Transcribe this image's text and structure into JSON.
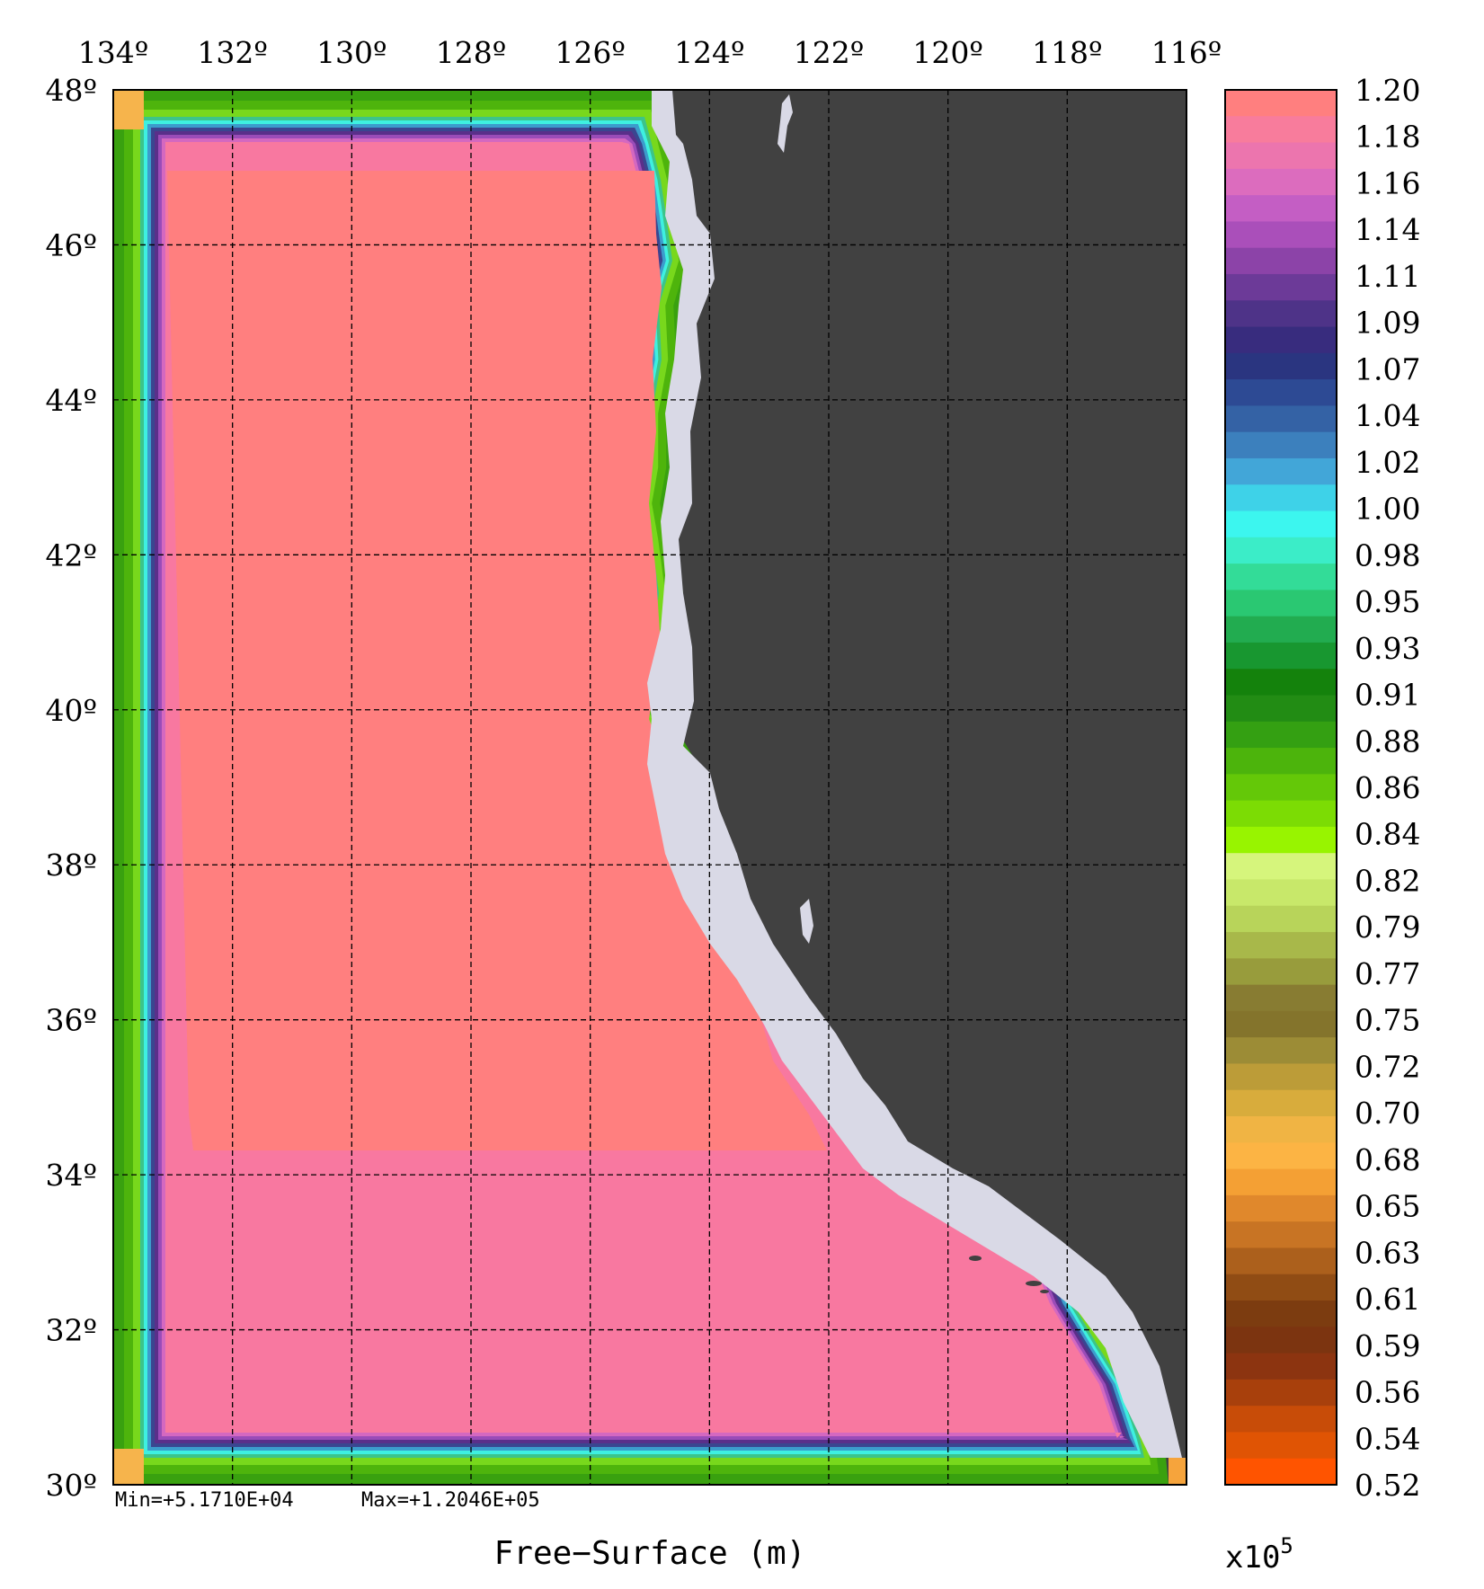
{
  "map": {
    "lon_labels": [
      "134º",
      "132º",
      "130º",
      "128º",
      "126º",
      "124º",
      "122º",
      "120º",
      "118º",
      "116º"
    ],
    "lat_labels": [
      "48º",
      "46º",
      "44º",
      "42º",
      "40º",
      "38º",
      "36º",
      "34º",
      "32º",
      "30º"
    ],
    "lon_range": [
      134,
      116
    ],
    "lat_range": [
      30,
      48
    ],
    "grid": true,
    "land_color": "#414141",
    "min_text": "Min=+5.1710E+04",
    "max_text": "Max=+1.2046E+05",
    "title": "Free−Surface (m)"
  },
  "colorbar": {
    "labels": [
      "1.20",
      "1.18",
      "1.16",
      "1.14",
      "1.11",
      "1.09",
      "1.07",
      "1.04",
      "1.02",
      "1.00",
      "0.98",
      "0.95",
      "0.93",
      "0.91",
      "0.88",
      "0.86",
      "0.84",
      "0.82",
      "0.79",
      "0.77",
      "0.75",
      "0.72",
      "0.70",
      "0.68",
      "0.65",
      "0.63",
      "0.61",
      "0.59",
      "0.56",
      "0.54",
      "0.52"
    ],
    "exponent_base": "x10",
    "exponent_power": "5",
    "colors": [
      "#ff7f7f",
      "#f87c9c",
      "#ec75ae",
      "#dc6cbe",
      "#c45ec4",
      "#aa4fba",
      "#8c43a8",
      "#6c3a98",
      "#4e3388",
      "#382c7e",
      "#2a3580",
      "#2d4a94",
      "#3462a5",
      "#3c80bd",
      "#42a6d8",
      "#3ed2e8",
      "#3cf6ef",
      "#3bedc8",
      "#33dc98",
      "#2ac872",
      "#22ac50",
      "#189730",
      "#14820c",
      "#228c14",
      "#34a012",
      "#4cb40c",
      "#64c808",
      "#7cdc04",
      "#98f400",
      "#d6f57c",
      "#c8e86a",
      "#b8d45a",
      "#a8b84a",
      "#989c3c",
      "#887c32",
      "#84742c",
      "#9c8c36",
      "#bc9c38",
      "#d8ac3c",
      "#f0b444",
      "#fcb444",
      "#f4a034",
      "#e0882c",
      "#c87424",
      "#ac601c",
      "#904c14",
      "#7c3c10",
      "#7c3410",
      "#8c3410",
      "#a8400c",
      "#c84c08",
      "#e05404",
      "#ff5400"
    ]
  }
}
